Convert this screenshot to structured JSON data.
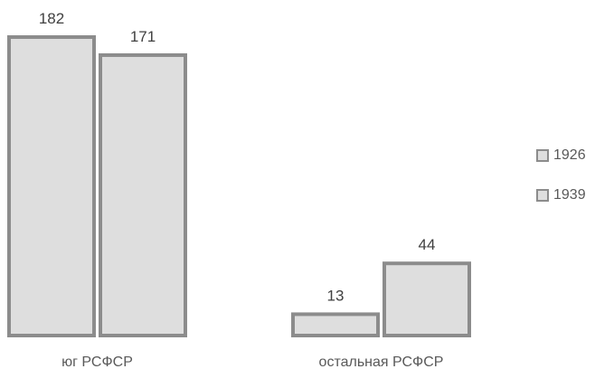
{
  "chart_data": {
    "type": "bar",
    "categories": [
      "юг РСФСР",
      "остальная РСФСР"
    ],
    "series": [
      {
        "name": "1926",
        "values": [
          182,
          13
        ]
      },
      {
        "name": "1939",
        "values": [
          171,
          44
        ]
      }
    ],
    "ylim": [
      0,
      190
    ],
    "grid": false,
    "legend_position": "right",
    "colors": {
      "fill": "#dedede",
      "stroke": "#8c8c8c",
      "value_text": "#404040",
      "label_text": "#595959"
    }
  }
}
